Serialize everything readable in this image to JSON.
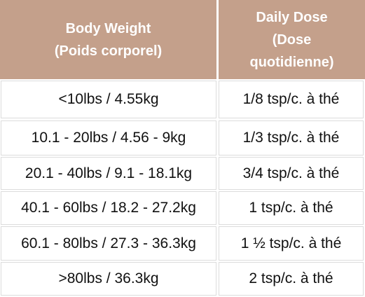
{
  "table": {
    "header": [
      [
        "Body Weight",
        "(Poids corporel)"
      ],
      [
        "Daily Dose",
        "(Dose",
        "quotidienne)"
      ]
    ],
    "rows": [
      [
        "<10lbs / 4.55kg",
        "1/8 tsp/c. à thé"
      ],
      [
        "10.1 - 20lbs / 4.56 - 9kg",
        "1/3 tsp/c. à thé"
      ],
      [
        "20.1 - 40lbs / 9.1 - 18.1kg",
        "3/4 tsp/c. à thé"
      ],
      [
        "40.1 - 60lbs / 18.2 - 27.2kg",
        "1 tsp/c. à thé"
      ],
      [
        "60.1 - 80lbs / 27.3 - 36.3kg",
        "1 ½ tsp/c. à thé"
      ],
      [
        ">80lbs / 36.3kg",
        "2 tsp/c. à thé"
      ]
    ]
  }
}
